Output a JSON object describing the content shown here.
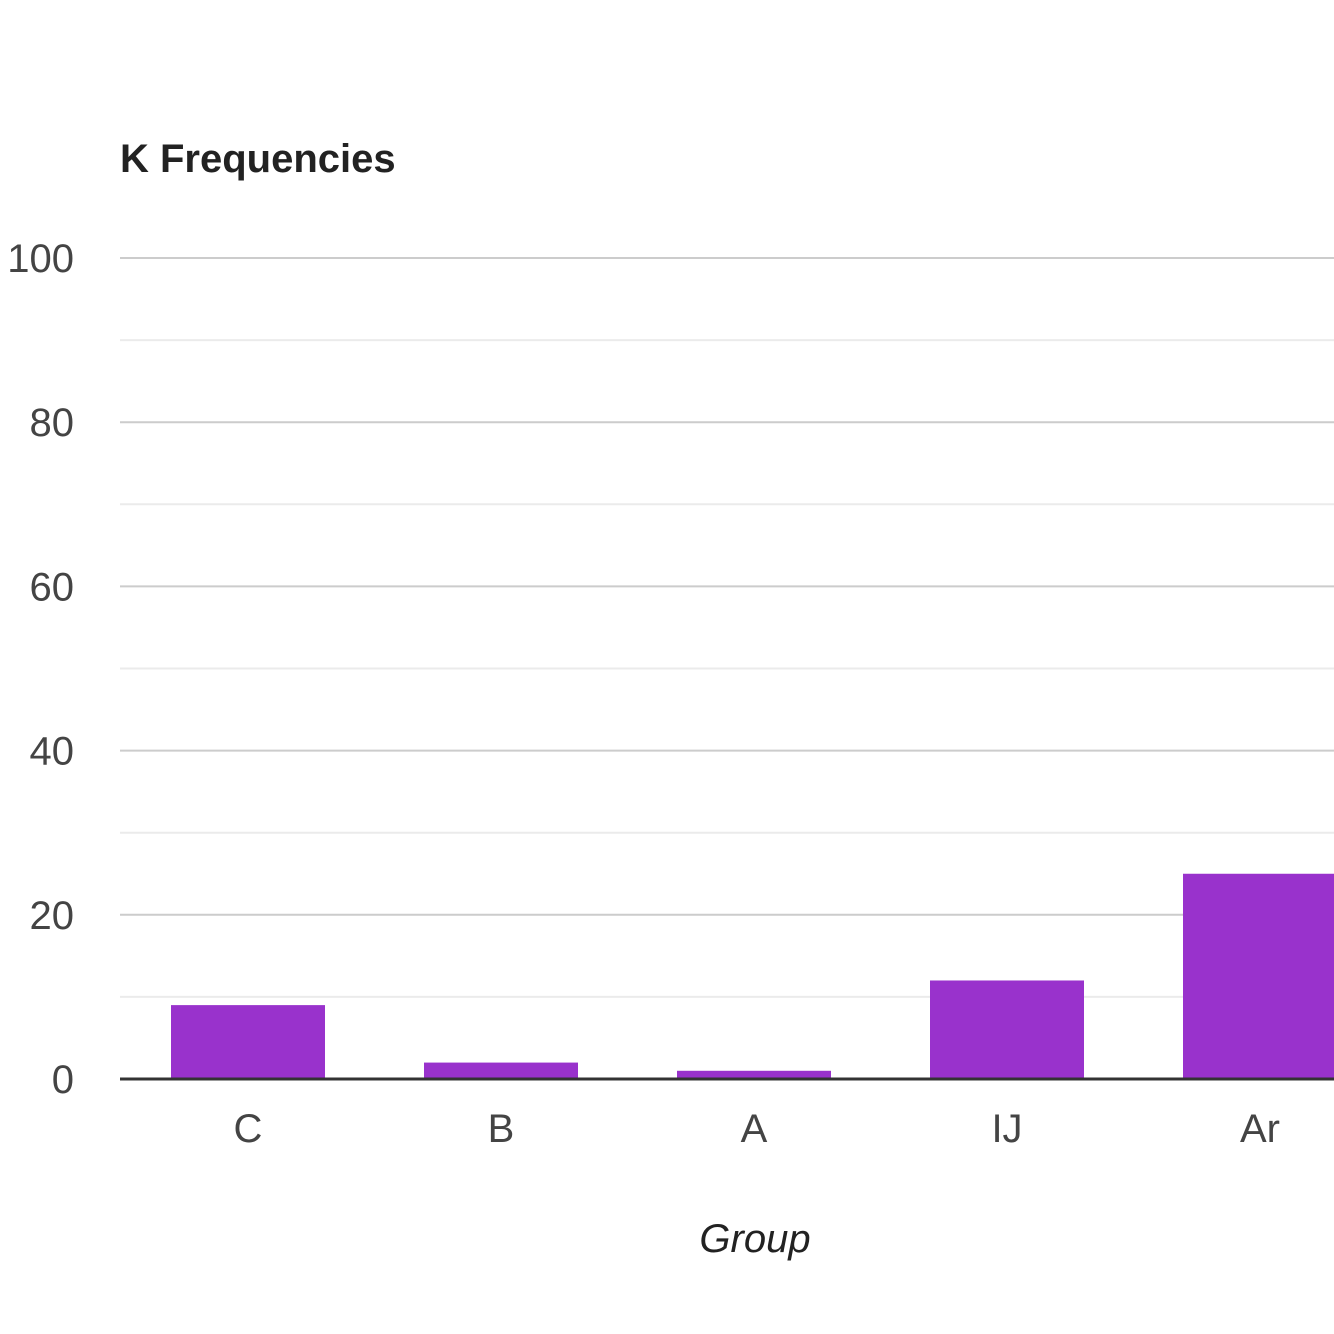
{
  "chart_data": {
    "type": "bar",
    "title": "K Frequencies",
    "xlabel": "Group",
    "ylabel": "",
    "categories": [
      "C",
      "B",
      "A",
      "IJ",
      "Ar"
    ],
    "values": [
      9,
      2,
      1,
      12,
      25
    ],
    "ylim": [
      0,
      100
    ],
    "yticks": [
      0,
      20,
      40,
      60,
      80,
      100
    ],
    "minor_gridlines": [
      10,
      30,
      50,
      70,
      90
    ],
    "grid": true,
    "legend": "none",
    "bar_color": "#9932CC",
    "gridline_color": "#cccccc",
    "minor_gridline_color": "#ebebeb",
    "baseline_color": "#333333"
  }
}
